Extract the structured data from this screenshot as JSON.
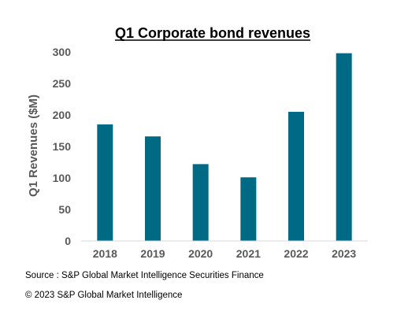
{
  "chart_data": {
    "type": "bar",
    "title": "Q1 Corporate bond revenues",
    "xlabel": "",
    "ylabel": "Q1 Revenues ($M)",
    "categories": [
      "2018",
      "2019",
      "2020",
      "2021",
      "2022",
      "2023"
    ],
    "values": [
      185,
      166,
      122,
      101,
      205,
      298
    ],
    "ylim": [
      0,
      300
    ],
    "yticks": [
      0,
      50,
      100,
      150,
      200,
      250,
      300
    ],
    "bar_color": "#006A85",
    "grid": false,
    "legend": "none"
  },
  "footer": {
    "source": "Source : S&P Global Market Intelligence Securities Finance",
    "copyright": "© 2023 S&P Global Market Intelligence"
  }
}
